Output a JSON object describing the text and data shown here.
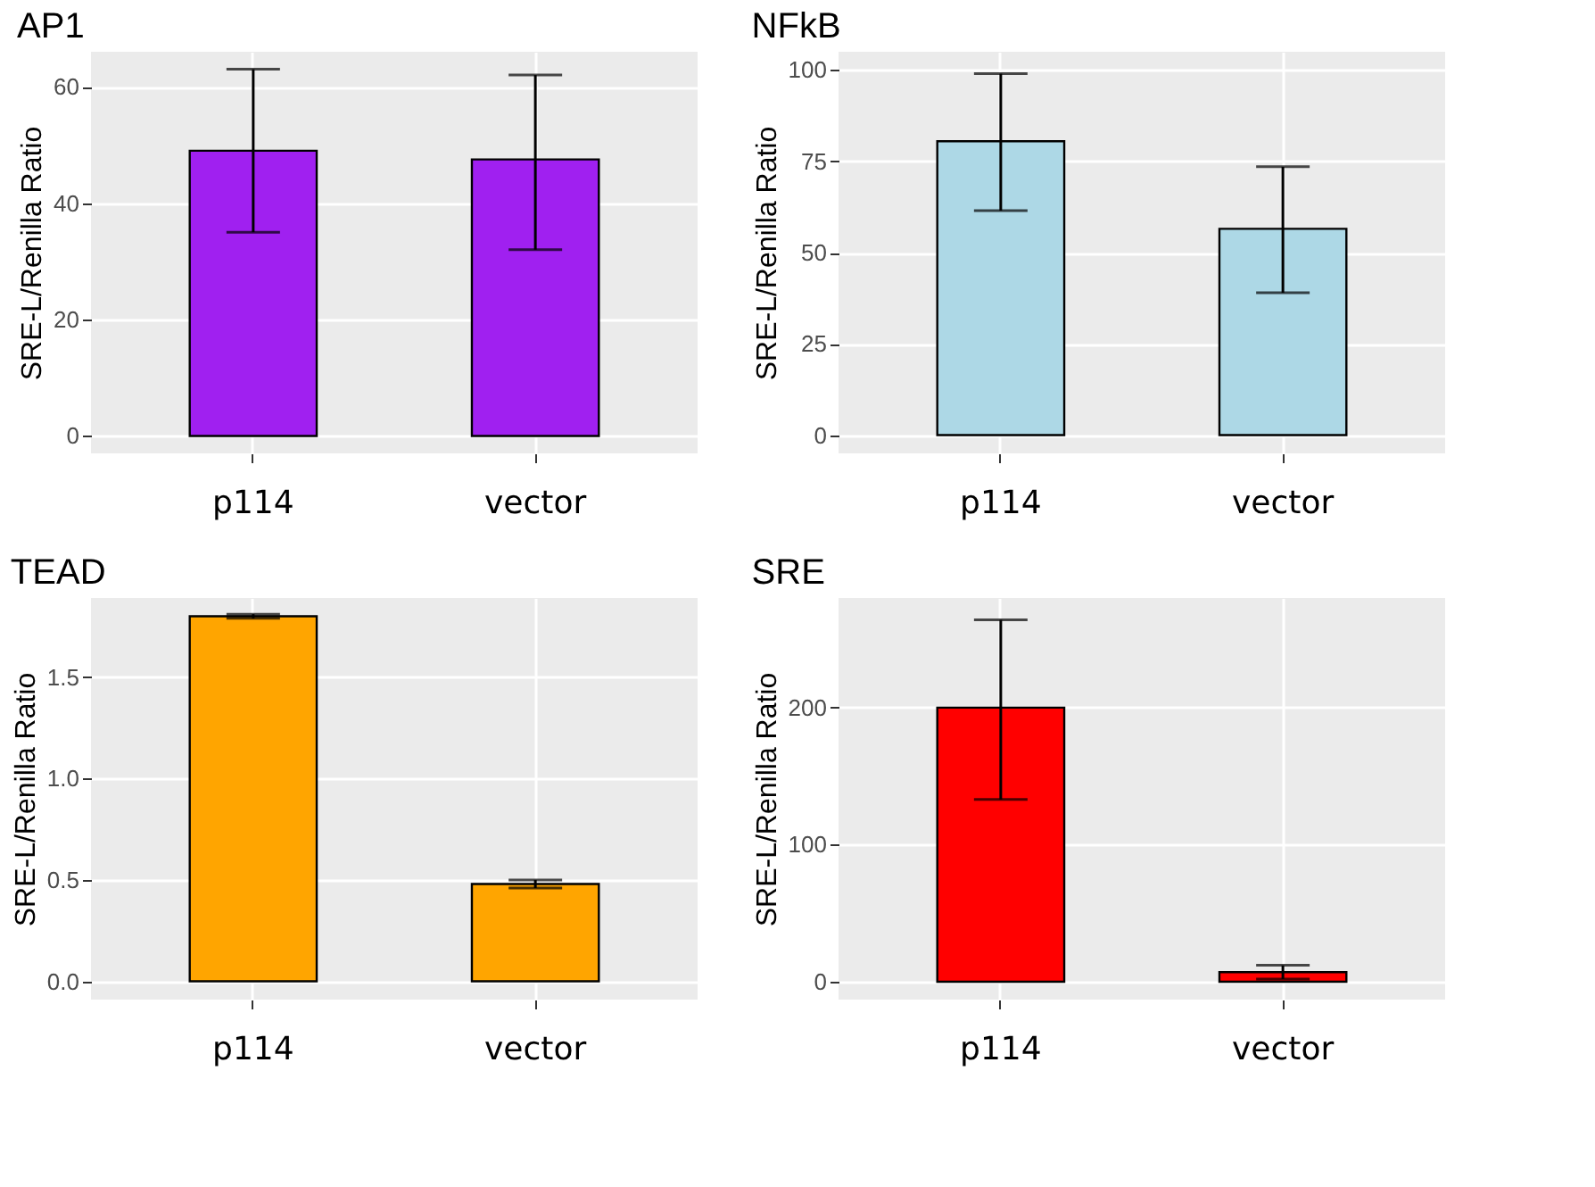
{
  "chart_data": [
    {
      "type": "bar",
      "title": "AP1",
      "ylabel": "SRE-L/Renilla Ratio",
      "categories": [
        "p114",
        "vector"
      ],
      "values": [
        49,
        47.5
      ],
      "color": "#a020f0",
      "errors": [
        [
          35,
          63
        ],
        [
          32,
          62
        ]
      ],
      "ylim": [
        -3,
        66
      ],
      "yticks": [
        0,
        20,
        40,
        60
      ],
      "grid": true
    },
    {
      "type": "bar",
      "title": "NFkB",
      "ylabel": "SRE-L/Renilla Ratio",
      "categories": [
        "p114",
        "vector"
      ],
      "values": [
        80.5,
        56.5
      ],
      "color": "#add8e6",
      "errors": [
        [
          61.5,
          99
        ],
        [
          39,
          73.5
        ]
      ],
      "ylim": [
        -5,
        105
      ],
      "yticks": [
        0,
        25,
        50,
        75,
        100
      ],
      "grid": true
    },
    {
      "type": "bar",
      "title": "TEAD",
      "ylabel": "SRE-L/Renilla Ratio",
      "categories": [
        "p114",
        "vector"
      ],
      "values": [
        1.8,
        0.48
      ],
      "color": "#ffa500",
      "errors": [
        [
          1.79,
          1.81
        ],
        [
          0.46,
          0.5
        ]
      ],
      "ylim": [
        -0.09,
        1.89
      ],
      "yticks": [
        {
          "value": 0,
          "label": "0.0"
        },
        {
          "value": 0.5,
          "label": "0.5"
        },
        {
          "value": 1,
          "label": "1.0"
        },
        {
          "value": 1.5,
          "label": "1.5"
        }
      ],
      "grid": true
    },
    {
      "type": "bar",
      "title": "SRE",
      "ylabel": "SRE-L/Renilla Ratio",
      "categories": [
        "p114",
        "vector"
      ],
      "values": [
        200,
        7
      ],
      "color": "#ff0000",
      "errors": [
        [
          133,
          264
        ],
        [
          2,
          12
        ]
      ],
      "ylim": [
        -13,
        280
      ],
      "yticks": [
        0,
        100,
        200
      ],
      "grid": true
    }
  ]
}
